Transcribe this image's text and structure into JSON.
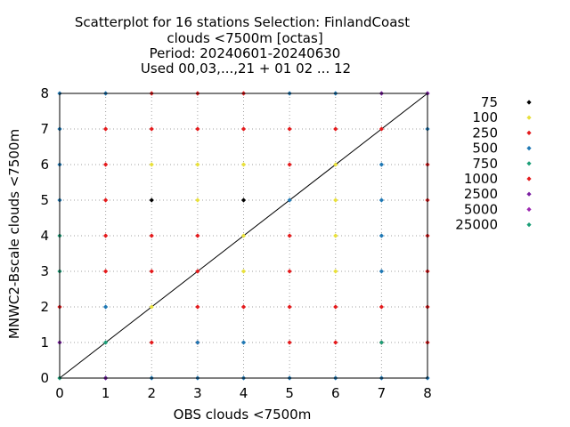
{
  "chart_data": {
    "type": "scatter",
    "title_lines": [
      "Scatterplot for   16 stations Selection: FinlandCoast",
      "clouds <7500m [octas]",
      "Period: 20240601-20240630",
      "Used 00,03,...,21 + 01 02 ... 12"
    ],
    "xlabel": "OBS clouds <7500m",
    "ylabel": "MNWC2-Bscale clouds <7500m",
    "xlim": [
      0,
      8
    ],
    "ylim": [
      0,
      8
    ],
    "x_ticks": [
      "0",
      "1",
      "2",
      "3",
      "4",
      "5",
      "6",
      "7",
      "8"
    ],
    "y_ticks": [
      "0",
      "1",
      "2",
      "3",
      "4",
      "5",
      "6",
      "7",
      "8"
    ],
    "grid": true,
    "diagonal": true,
    "legend_position": "right",
    "series": [
      {
        "name": "75",
        "color": "#000000",
        "points": [
          [
            2,
            5
          ],
          [
            4,
            5
          ]
        ]
      },
      {
        "name": "100",
        "color": "#e8e03a",
        "points": [
          [
            2,
            2
          ],
          [
            2,
            6
          ],
          [
            3,
            5
          ],
          [
            3,
            6
          ],
          [
            4,
            3
          ],
          [
            4,
            4
          ],
          [
            4,
            6
          ],
          [
            6,
            3
          ],
          [
            6,
            4
          ],
          [
            6,
            5
          ],
          [
            6,
            6
          ]
        ]
      },
      {
        "name": "250",
        "color": "#e41a1c",
        "points": [
          [
            0,
            2
          ],
          [
            1,
            3
          ],
          [
            1,
            4
          ],
          [
            1,
            5
          ],
          [
            1,
            6
          ],
          [
            1,
            7
          ],
          [
            2,
            1
          ],
          [
            2,
            3
          ],
          [
            2,
            4
          ],
          [
            2,
            7
          ],
          [
            2,
            8
          ],
          [
            3,
            1
          ],
          [
            3,
            2
          ],
          [
            3,
            3
          ],
          [
            3,
            4
          ],
          [
            3,
            7
          ],
          [
            3,
            8
          ],
          [
            4,
            2
          ],
          [
            4,
            7
          ],
          [
            4,
            8
          ],
          [
            5,
            1
          ],
          [
            5,
            2
          ],
          [
            5,
            3
          ],
          [
            5,
            4
          ],
          [
            5,
            6
          ],
          [
            5,
            7
          ],
          [
            6,
            1
          ],
          [
            6,
            2
          ],
          [
            6,
            7
          ],
          [
            7,
            1
          ],
          [
            7,
            2
          ],
          [
            7,
            7
          ],
          [
            8,
            1
          ],
          [
            8,
            2
          ],
          [
            8,
            3
          ],
          [
            8,
            4
          ],
          [
            8,
            5
          ],
          [
            8,
            6
          ]
        ]
      },
      {
        "name": "500",
        "color": "#1f78b4",
        "points": [
          [
            0,
            5
          ],
          [
            0,
            6
          ],
          [
            0,
            7
          ],
          [
            0,
            8
          ],
          [
            1,
            0
          ],
          [
            1,
            2
          ],
          [
            1,
            8
          ],
          [
            2,
            0
          ],
          [
            3,
            0
          ],
          [
            3,
            1
          ],
          [
            4,
            0
          ],
          [
            4,
            1
          ],
          [
            5,
            0
          ],
          [
            5,
            5
          ],
          [
            5,
            8
          ],
          [
            6,
            0
          ],
          [
            6,
            8
          ],
          [
            7,
            0
          ],
          [
            7,
            3
          ],
          [
            7,
            4
          ],
          [
            7,
            5
          ],
          [
            7,
            6
          ],
          [
            8,
            0
          ],
          [
            8,
            7
          ]
        ]
      },
      {
        "name": "750",
        "color": "#1b9e77",
        "points": [
          [
            0,
            0
          ],
          [
            0,
            3
          ],
          [
            0,
            4
          ],
          [
            1,
            1
          ],
          [
            7,
            1
          ]
        ]
      },
      {
        "name": "1000",
        "color": "#e41a1c",
        "points": []
      },
      {
        "name": "2500",
        "color": "#7b1fa2",
        "points": [
          [
            0,
            1
          ],
          [
            1,
            0
          ],
          [
            7,
            8
          ],
          [
            8,
            8
          ]
        ]
      },
      {
        "name": "5000",
        "color": "#9c27b0",
        "points": []
      },
      {
        "name": "25000",
        "color": "#1b9e77",
        "points": []
      }
    ]
  }
}
